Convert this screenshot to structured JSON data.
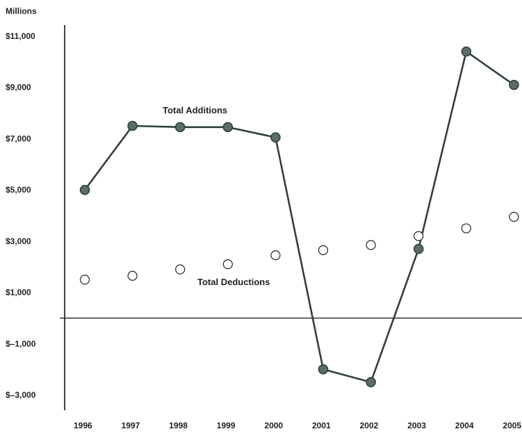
{
  "chart_data": {
    "type": "line",
    "y_unit_label": "Millions",
    "categories": [
      "1996",
      "1997",
      "1998",
      "1999",
      "2000",
      "2001",
      "2002",
      "2003",
      "2004",
      "2005"
    ],
    "y_ticks": [
      11000,
      9000,
      7000,
      5000,
      3000,
      1000,
      -1000,
      -3000
    ],
    "y_tick_labels": [
      "$11,000",
      "$9,000",
      "$7,000",
      "$5,000",
      "$3,000",
      "$1,000",
      "$–1,000",
      "$–3,000"
    ],
    "ylim": [
      -3000,
      11000
    ],
    "grid": false,
    "series": [
      {
        "name": "Total Additions",
        "style": "line-with-filled-markers",
        "color": "#2f3f3d",
        "marker_fill": "#5b6d6b",
        "values": [
          5000,
          7500,
          7450,
          7450,
          7050,
          -2000,
          -2500,
          2700,
          10400,
          9100
        ]
      },
      {
        "name": "Total Deductions",
        "style": "open-markers",
        "color": "#222222",
        "marker_fill": "#ffffff",
        "values": [
          1500,
          1650,
          1900,
          2100,
          2450,
          2650,
          2850,
          3200,
          3500,
          3950
        ]
      }
    ]
  }
}
